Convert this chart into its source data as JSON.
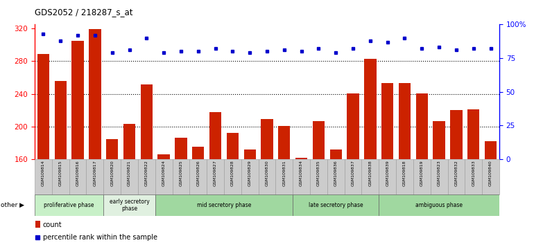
{
  "title": "GDS2052 / 218287_s_at",
  "samples": [
    "GSM109814",
    "GSM109815",
    "GSM109816",
    "GSM109817",
    "GSM109820",
    "GSM109821",
    "GSM109822",
    "GSM109824",
    "GSM109825",
    "GSM109826",
    "GSM109827",
    "GSM109828",
    "GSM109829",
    "GSM109830",
    "GSM109831",
    "GSM109834",
    "GSM109835",
    "GSM109836",
    "GSM109837",
    "GSM109838",
    "GSM109839",
    "GSM109818",
    "GSM109819",
    "GSM109823",
    "GSM109832",
    "GSM109833",
    "GSM109840"
  ],
  "counts": [
    289,
    256,
    305,
    319,
    185,
    203,
    252,
    166,
    186,
    175,
    218,
    192,
    172,
    209,
    201,
    162,
    207,
    172,
    241,
    283,
    253,
    253,
    241,
    207,
    220,
    221,
    182
  ],
  "percentile": [
    93,
    88,
    92,
    92,
    79,
    81,
    90,
    79,
    80,
    80,
    82,
    80,
    79,
    80,
    81,
    80,
    82,
    79,
    82,
    88,
    87,
    90,
    82,
    83,
    81,
    82,
    82
  ],
  "bar_color": "#cc2200",
  "dot_color": "#0000cc",
  "tick_bg": "#cccccc",
  "ymin": 160,
  "ymax": 325,
  "yticks": [
    160,
    200,
    240,
    280,
    320
  ],
  "y2min": 0,
  "y2max": 100,
  "y2ticks": [
    0,
    25,
    50,
    75,
    100
  ],
  "phase_info": [
    {
      "label": "proliferative phase",
      "start": 0,
      "end": 4,
      "color": "#c8f0c8"
    },
    {
      "label": "early secretory\nphase",
      "start": 4,
      "end": 7,
      "color": "#e0f0e0"
    },
    {
      "label": "mid secretory phase",
      "start": 7,
      "end": 15,
      "color": "#a0d8a0"
    },
    {
      "label": "late secretory phase",
      "start": 15,
      "end": 20,
      "color": "#a0d8a0"
    },
    {
      "label": "ambiguous phase",
      "start": 20,
      "end": 27,
      "color": "#a0d8a0"
    }
  ]
}
